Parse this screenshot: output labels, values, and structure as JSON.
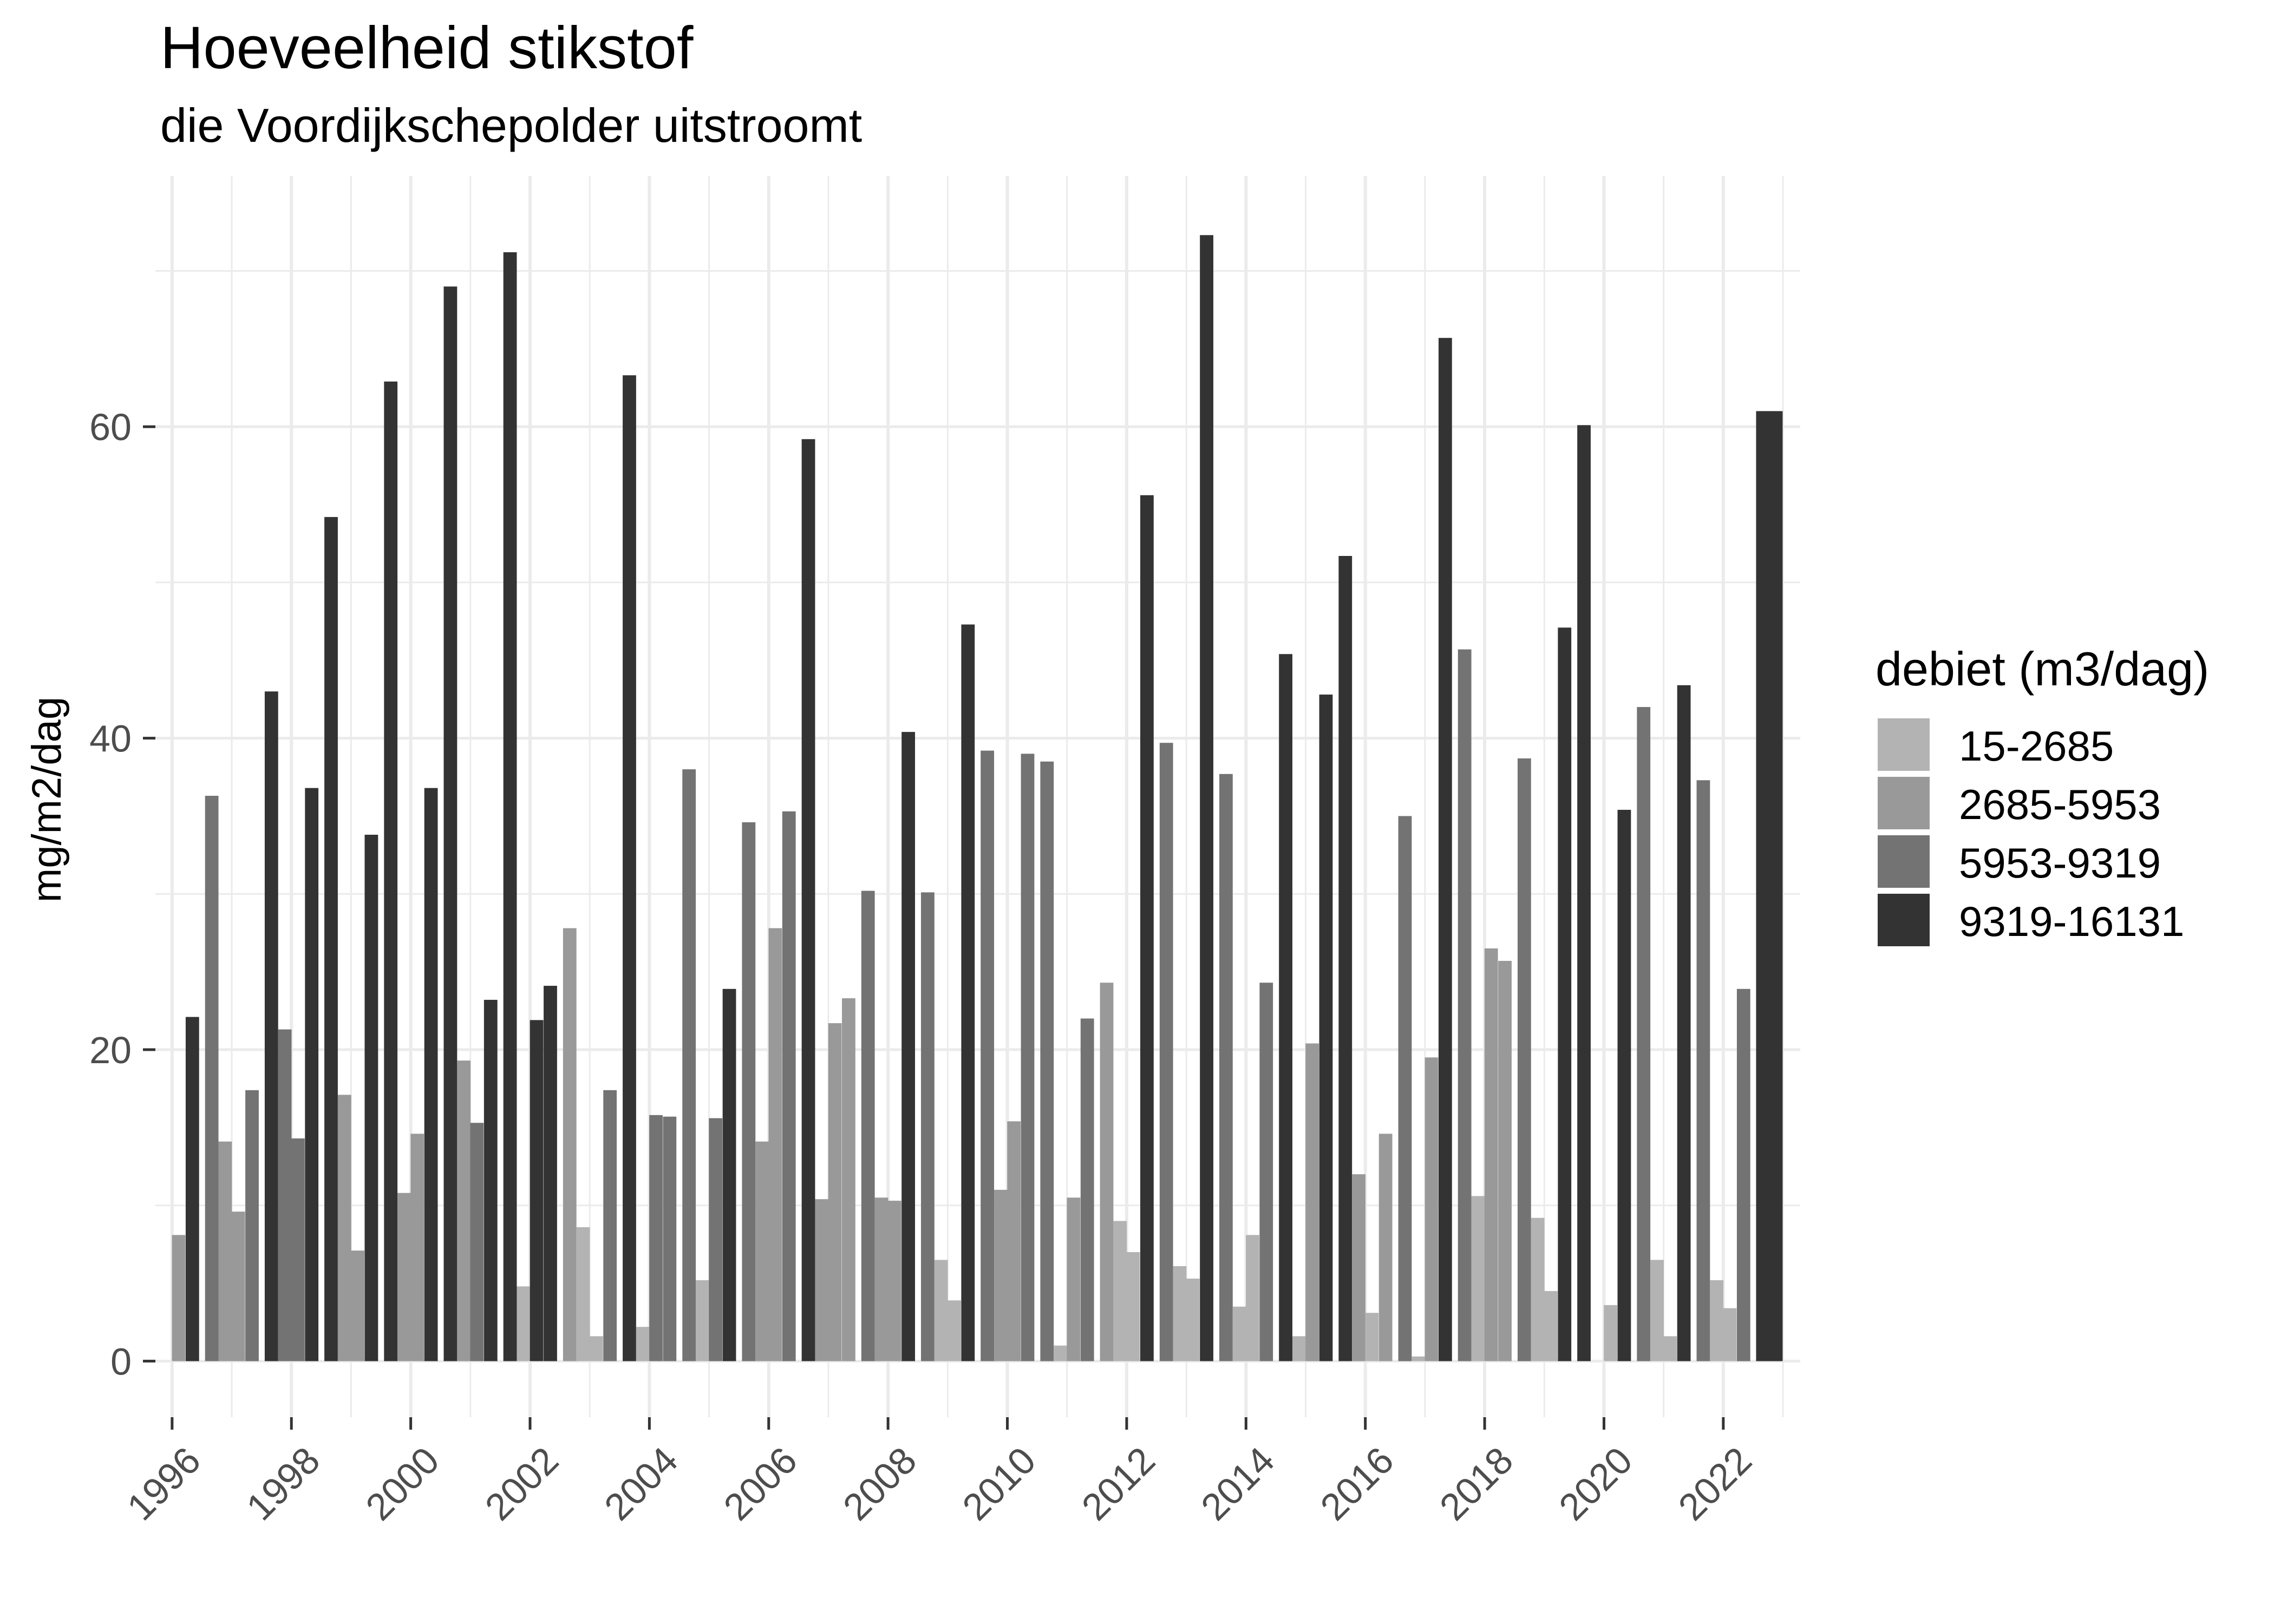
{
  "chart_data": {
    "type": "bar",
    "title": "Hoeveelheid stikstof",
    "subtitle": "die Voordijkschepolder uitstroomt",
    "xlabel": "",
    "ylabel": "mg/m2/dag",
    "xlim": [
      1995.72,
      2023.29
    ],
    "ylim": [
      -3.6,
      76.1
    ],
    "x_ticks": [
      1996,
      1998,
      2000,
      2002,
      2004,
      2006,
      2008,
      2010,
      2012,
      2014,
      2016,
      2018,
      2020,
      2022
    ],
    "x_tick_labels": [
      "1996",
      "1998",
      "2000",
      "2002",
      "2004",
      "2006",
      "2008",
      "2010",
      "2012",
      "2014",
      "2016",
      "2018",
      "2020",
      "2022"
    ],
    "y_ticks": [
      0,
      20,
      40,
      60
    ],
    "y_tick_labels": [
      "0",
      "20",
      "40",
      "60"
    ],
    "grid": true,
    "legend": {
      "title": "debiet (m3/dag)",
      "placement": "right",
      "entries": [
        {
          "label": "15-2685",
          "color": "#b3b3b3"
        },
        {
          "label": "2685-5953",
          "color": "#999999"
        },
        {
          "label": "5953-9319",
          "color": "#737373"
        },
        {
          "label": "9319-16131",
          "color": "#333333"
        }
      ]
    },
    "bars": [
      {
        "period": "1996-Q1",
        "value": 8.1,
        "class": "2685-5953"
      },
      {
        "period": "1996-Q2",
        "value": 22.1,
        "class": "9319-16131"
      },
      {
        "period": "1996-Q3",
        "value": 36.3,
        "class": "5953-9319"
      },
      {
        "period": "1996-Q4",
        "value": 14.1,
        "class": "2685-5953"
      },
      {
        "period": "1997-Q1",
        "value": 9.6,
        "class": "2685-5953"
      },
      {
        "period": "1997-Q2",
        "value": 17.4,
        "class": "5953-9319"
      },
      {
        "period": "1997-Q3",
        "value": 43.0,
        "class": "9319-16131"
      },
      {
        "period": "1997-Q4",
        "value": 21.3,
        "class": "5953-9319"
      },
      {
        "period": "1998-Q1",
        "value": 14.3,
        "class": "5953-9319"
      },
      {
        "period": "1998-Q2",
        "value": 36.8,
        "class": "9319-16131"
      },
      {
        "period": "1998-Q3",
        "value": 54.2,
        "class": "9319-16131"
      },
      {
        "period": "1998-Q4",
        "value": 17.1,
        "class": "2685-5953"
      },
      {
        "period": "1999-Q1",
        "value": 7.1,
        "class": "2685-5953"
      },
      {
        "period": "1999-Q2",
        "value": 33.8,
        "class": "9319-16131"
      },
      {
        "period": "1999-Q3",
        "value": 62.9,
        "class": "9319-16131"
      },
      {
        "period": "1999-Q4",
        "value": 10.8,
        "class": "2685-5953"
      },
      {
        "period": "2000-Q1",
        "value": 14.6,
        "class": "2685-5953"
      },
      {
        "period": "2000-Q2",
        "value": 36.8,
        "class": "9319-16131"
      },
      {
        "period": "2000-Q3",
        "value": 69.0,
        "class": "9319-16131"
      },
      {
        "period": "2000-Q4",
        "value": 19.3,
        "class": "2685-5953"
      },
      {
        "period": "2001-Q1",
        "value": 15.3,
        "class": "5953-9319"
      },
      {
        "period": "2001-Q2",
        "value": 23.2,
        "class": "9319-16131"
      },
      {
        "period": "2001-Q3",
        "value": 71.2,
        "class": "9319-16131"
      },
      {
        "period": "2001-Q4",
        "value": 4.8,
        "class": "15-2685"
      },
      {
        "period": "2002-Q1",
        "value": 21.9,
        "class": "9319-16131"
      },
      {
        "period": "2002-Q2",
        "value": 24.1,
        "class": "9319-16131"
      },
      {
        "period": "2002-Q3",
        "value": 27.8,
        "class": "2685-5953"
      },
      {
        "period": "2002-Q4",
        "value": 8.6,
        "class": "15-2685"
      },
      {
        "period": "2003-Q1",
        "value": 1.6,
        "class": "15-2685"
      },
      {
        "period": "2003-Q2",
        "value": 17.4,
        "class": "5953-9319"
      },
      {
        "period": "2003-Q3",
        "value": 63.3,
        "class": "9319-16131"
      },
      {
        "period": "2003-Q4",
        "value": 2.2,
        "class": "15-2685"
      },
      {
        "period": "2004-Q1",
        "value": 15.8,
        "class": "5953-9319"
      },
      {
        "period": "2004-Q2",
        "value": 15.7,
        "class": "5953-9319"
      },
      {
        "period": "2004-Q3",
        "value": 38.0,
        "class": "5953-9319"
      },
      {
        "period": "2004-Q4",
        "value": 5.2,
        "class": "15-2685"
      },
      {
        "period": "2005-Q1",
        "value": 15.6,
        "class": "5953-9319"
      },
      {
        "period": "2005-Q2",
        "value": 23.9,
        "class": "9319-16131"
      },
      {
        "period": "2005-Q3",
        "value": 34.6,
        "class": "5953-9319"
      },
      {
        "period": "2005-Q4",
        "value": 14.1,
        "class": "2685-5953"
      },
      {
        "period": "2006-Q1",
        "value": 27.8,
        "class": "2685-5953"
      },
      {
        "period": "2006-Q2",
        "value": 35.3,
        "class": "5953-9319"
      },
      {
        "period": "2006-Q3",
        "value": 59.2,
        "class": "9319-16131"
      },
      {
        "period": "2006-Q4",
        "value": 10.4,
        "class": "2685-5953"
      },
      {
        "period": "2007-Q1",
        "value": 21.7,
        "class": "2685-5953"
      },
      {
        "period": "2007-Q2",
        "value": 23.3,
        "class": "2685-5953"
      },
      {
        "period": "2007-Q3",
        "value": 30.2,
        "class": "5953-9319"
      },
      {
        "period": "2007-Q4",
        "value": 10.5,
        "class": "2685-5953"
      },
      {
        "period": "2008-Q1",
        "value": 10.3,
        "class": "2685-5953"
      },
      {
        "period": "2008-Q2",
        "value": 40.4,
        "class": "9319-16131"
      },
      {
        "period": "2008-Q3",
        "value": 30.1,
        "class": "5953-9319"
      },
      {
        "period": "2008-Q4",
        "value": 6.5,
        "class": "15-2685"
      },
      {
        "period": "2009-Q1",
        "value": 3.9,
        "class": "15-2685"
      },
      {
        "period": "2009-Q2",
        "value": 47.3,
        "class": "9319-16131"
      },
      {
        "period": "2009-Q3",
        "value": 39.2,
        "class": "5953-9319"
      },
      {
        "period": "2009-Q4",
        "value": 11.0,
        "class": "2685-5953"
      },
      {
        "period": "2010-Q1",
        "value": 15.4,
        "class": "2685-5953"
      },
      {
        "period": "2010-Q2",
        "value": 39.0,
        "class": "5953-9319"
      },
      {
        "period": "2010-Q3",
        "value": 38.5,
        "class": "5953-9319"
      },
      {
        "period": "2010-Q4",
        "value": 1.0,
        "class": "15-2685"
      },
      {
        "period": "2011-Q1",
        "value": 10.5,
        "class": "2685-5953"
      },
      {
        "period": "2011-Q2",
        "value": 22.0,
        "class": "5953-9319"
      },
      {
        "period": "2011-Q3",
        "value": 24.3,
        "class": "2685-5953"
      },
      {
        "period": "2011-Q4",
        "value": 9.0,
        "class": "15-2685"
      },
      {
        "period": "2012-Q1",
        "value": 7.0,
        "class": "15-2685"
      },
      {
        "period": "2012-Q2",
        "value": 55.6,
        "class": "9319-16131"
      },
      {
        "period": "2012-Q3",
        "value": 39.7,
        "class": "5953-9319"
      },
      {
        "period": "2012-Q4",
        "value": 6.1,
        "class": "15-2685"
      },
      {
        "period": "2013-Q1",
        "value": 5.3,
        "class": "15-2685"
      },
      {
        "period": "2013-Q2",
        "value": 72.3,
        "class": "9319-16131"
      },
      {
        "period": "2013-Q3",
        "value": 37.7,
        "class": "5953-9319"
      },
      {
        "period": "2013-Q4",
        "value": 3.5,
        "class": "15-2685"
      },
      {
        "period": "2014-Q1",
        "value": 8.1,
        "class": "15-2685"
      },
      {
        "period": "2014-Q2",
        "value": 24.3,
        "class": "5953-9319"
      },
      {
        "period": "2014-Q3",
        "value": 45.4,
        "class": "9319-16131"
      },
      {
        "period": "2014-Q4",
        "value": 1.6,
        "class": "15-2685"
      },
      {
        "period": "2015-Q1",
        "value": 20.4,
        "class": "2685-5953"
      },
      {
        "period": "2015-Q2",
        "value": 42.8,
        "class": "9319-16131"
      },
      {
        "period": "2015-Q3",
        "value": 51.7,
        "class": "9319-16131"
      },
      {
        "period": "2015-Q4",
        "value": 12.0,
        "class": "2685-5953"
      },
      {
        "period": "2016-Q1",
        "value": 3.1,
        "class": "15-2685"
      },
      {
        "period": "2016-Q2",
        "value": 14.6,
        "class": "2685-5953"
      },
      {
        "period": "2016-Q3",
        "value": 35.0,
        "class": "5953-9319"
      },
      {
        "period": "2016-Q4",
        "value": 0.3,
        "class": "15-2685"
      },
      {
        "period": "2017-Q1",
        "value": 19.5,
        "class": "2685-5953"
      },
      {
        "period": "2017-Q2",
        "value": 65.7,
        "class": "9319-16131"
      },
      {
        "period": "2017-Q3",
        "value": 45.7,
        "class": "5953-9319"
      },
      {
        "period": "2017-Q4",
        "value": 10.6,
        "class": "15-2685"
      },
      {
        "period": "2018-Q1",
        "value": 26.5,
        "class": "2685-5953"
      },
      {
        "period": "2018-Q2",
        "value": 25.7,
        "class": "2685-5953"
      },
      {
        "period": "2018-Q3",
        "value": 38.7,
        "class": "5953-9319"
      },
      {
        "period": "2018-Q4",
        "value": 9.2,
        "class": "15-2685"
      },
      {
        "period": "2019-Q1",
        "value": 4.5,
        "class": "15-2685"
      },
      {
        "period": "2019-Q2",
        "value": 47.1,
        "class": "9319-16131"
      },
      {
        "period": "2019-Q3",
        "value": 60.1,
        "class": "9319-16131"
      },
      {
        "period": "2020-Q1",
        "value": 3.6,
        "class": "15-2685"
      },
      {
        "period": "2020-Q2",
        "value": 35.4,
        "class": "9319-16131"
      },
      {
        "period": "2020-Q3",
        "value": 42.0,
        "class": "5953-9319"
      },
      {
        "period": "2020-Q4",
        "value": 6.5,
        "class": "15-2685"
      },
      {
        "period": "2021-Q1",
        "value": 1.6,
        "class": "15-2685"
      },
      {
        "period": "2021-Q2",
        "value": 43.4,
        "class": "9319-16131"
      },
      {
        "period": "2021-Q3",
        "value": 37.3,
        "class": "5953-9319"
      },
      {
        "period": "2021-Q4",
        "value": 5.2,
        "class": "15-2685"
      },
      {
        "period": "2022-Q1",
        "value": 3.4,
        "class": "15-2685"
      },
      {
        "period": "2022-Q2",
        "value": 23.9,
        "class": "5953-9319"
      },
      {
        "period": "2022-H2",
        "value": 61.0,
        "class": "9319-16131"
      }
    ]
  }
}
